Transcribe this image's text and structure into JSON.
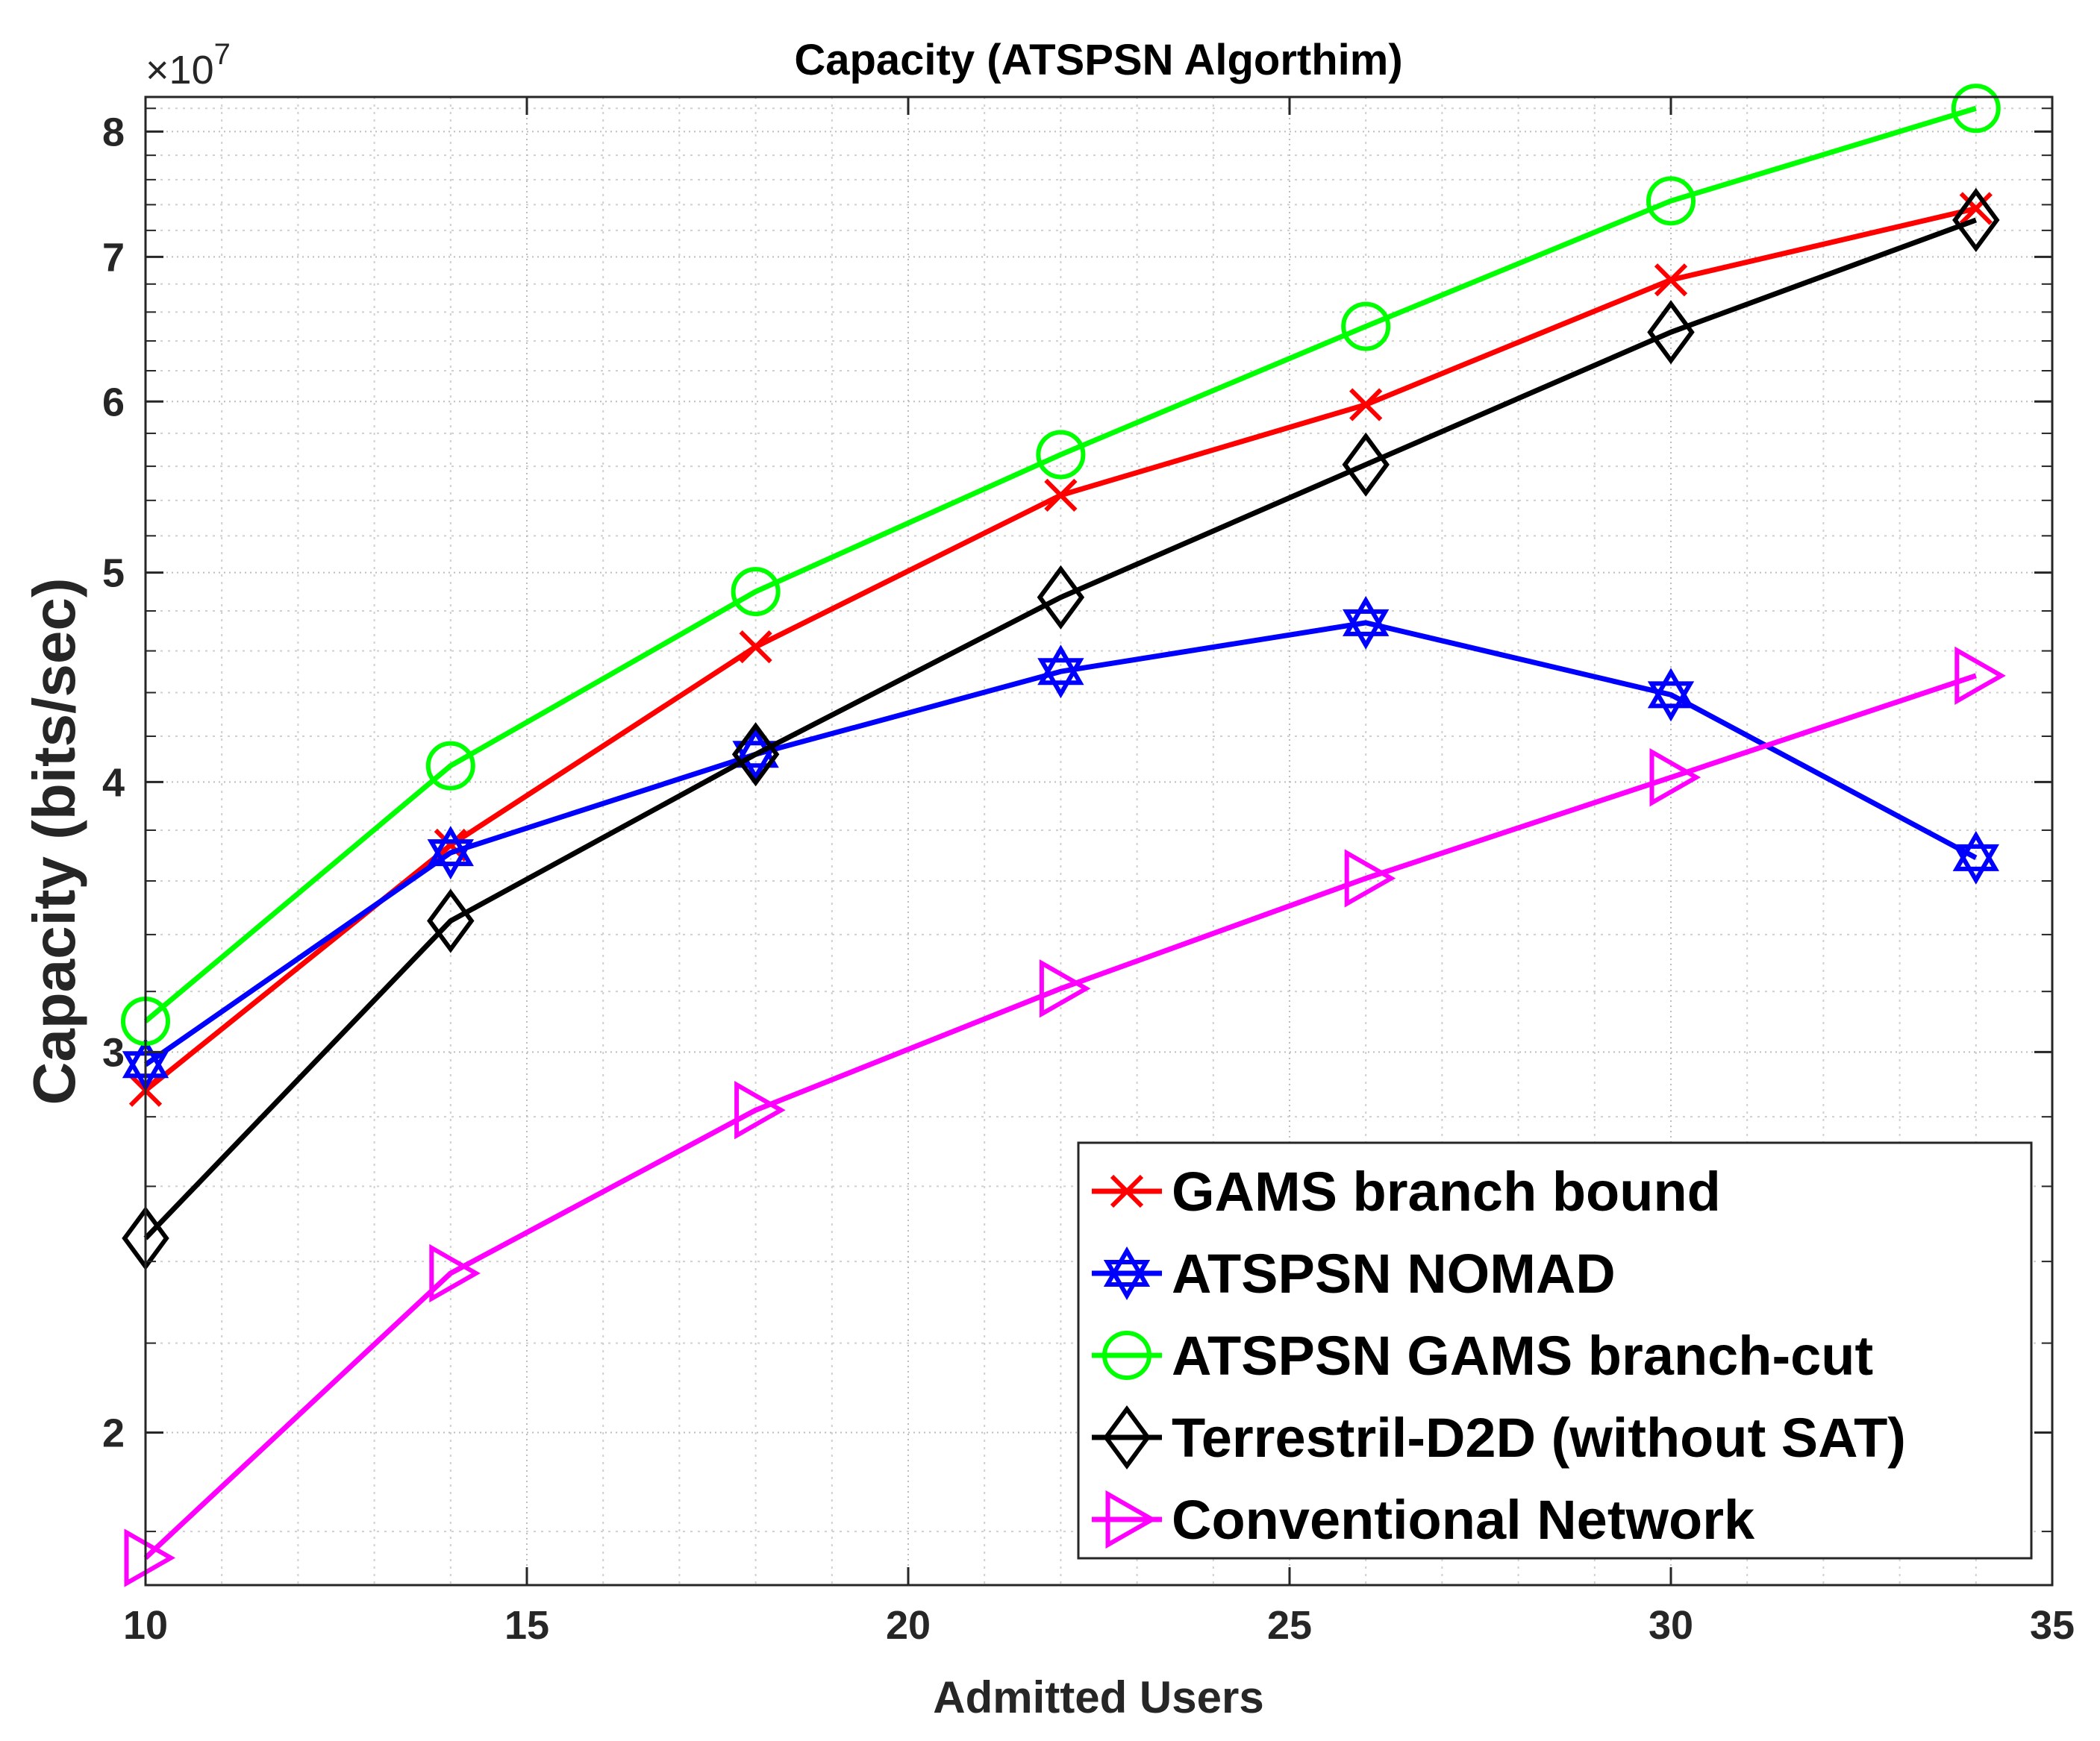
{
  "chart_data": {
    "type": "line",
    "title": "Capacity (ATSPSN Algorthim)",
    "xlabel": "Admitted Users",
    "ylabel": "Capacity (bits/sec)",
    "xlim": [
      10,
      35
    ],
    "ylim": [
      17000000,
      83000000
    ],
    "yscale": "log",
    "y_multiplier_label": "×10",
    "y_multiplier_exp": "7",
    "grid": true,
    "minor_grid": true,
    "legend_position": "bottom-right",
    "xticks": [
      10,
      15,
      20,
      25,
      30,
      35
    ],
    "xtick_labels": [
      "10",
      "15",
      "20",
      "25",
      "30",
      "35"
    ],
    "yticks": [
      20000000,
      30000000,
      40000000,
      50000000,
      60000000,
      70000000,
      80000000
    ],
    "ytick_labels": [
      "2",
      "3",
      "4",
      "5",
      "6",
      "7",
      "8"
    ],
    "x": [
      10,
      14,
      18,
      22,
      26,
      30,
      34
    ],
    "series": [
      {
        "name": "GAMS branch bound",
        "color": "#ff0000",
        "marker": "x",
        "values": [
          28800000,
          37400000,
          46200000,
          54300000,
          59800000,
          68300000,
          73700000
        ]
      },
      {
        "name": "ATSPSN NOMAD",
        "color": "#0000ff",
        "marker": "hexagram",
        "values": [
          29600000,
          37100000,
          41200000,
          45000000,
          47400000,
          43900000,
          36900000
        ]
      },
      {
        "name": "ATSPSN GAMS branch-cut",
        "color": "#00ff00",
        "marker": "circle",
        "values": [
          31000000,
          40700000,
          49000000,
          56700000,
          65000000,
          74300000,
          82000000
        ]
      },
      {
        "name": "Terrestril-D2D (without SAT)",
        "color": "#000000",
        "marker": "diamond",
        "values": [
          24600000,
          34500000,
          41200000,
          48700000,
          56100000,
          64600000,
          72800000
        ]
      },
      {
        "name": "Conventional Network",
        "color": "#ff00ff",
        "marker": "triangle-right",
        "values": [
          17500000,
          23700000,
          28200000,
          32100000,
          36100000,
          40200000,
          44800000
        ]
      }
    ]
  }
}
